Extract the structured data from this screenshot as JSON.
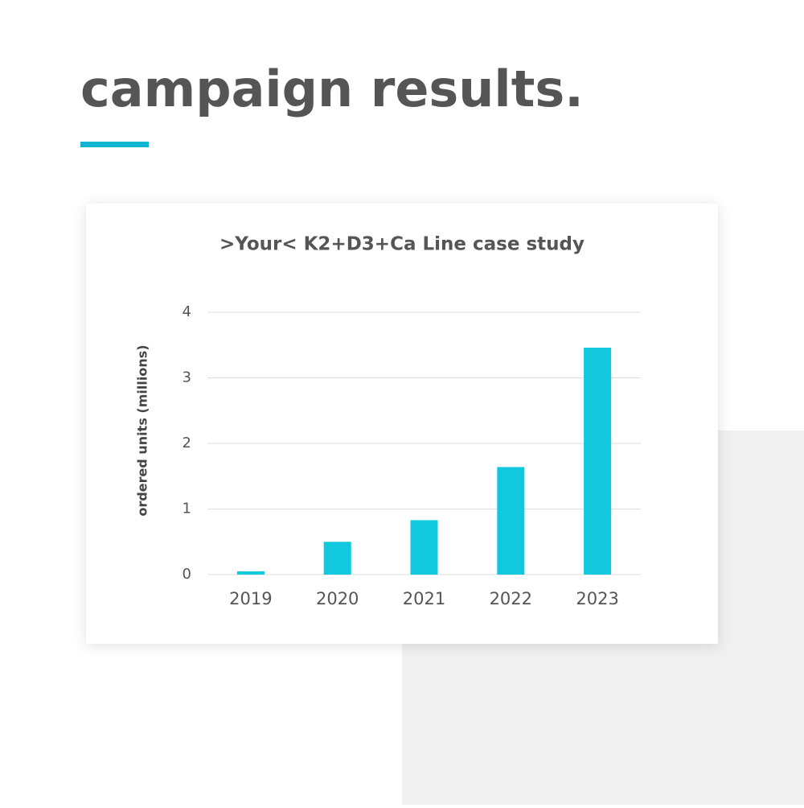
{
  "heading": "campaign results.",
  "chart_data": {
    "type": "bar",
    "title": ">Your< K2+D3+Ca Line case study",
    "y_label": "ordered units (millions)",
    "categories": [
      "2019",
      "2020",
      "2021",
      "2022",
      "2023"
    ],
    "values": [
      0.05,
      0.5,
      0.83,
      1.64,
      3.46
    ],
    "color": "#12c8de",
    "ylim": [
      0,
      4
    ],
    "yticks": [
      0,
      1,
      2,
      3,
      4
    ],
    "grid": true
  }
}
